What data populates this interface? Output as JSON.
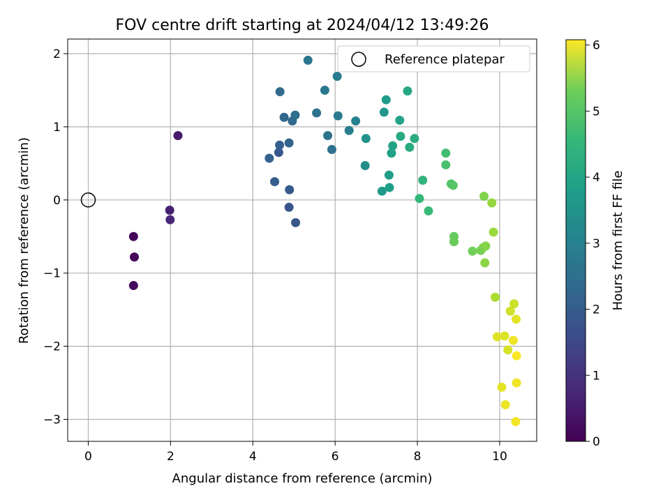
{
  "chart_data": {
    "type": "scatter",
    "title": "FOV centre drift starting at 2024/04/12 13:49:26",
    "xlabel": "Angular distance from reference (arcmin)",
    "ylabel": "Rotation from reference (arcmin)",
    "xlim": [
      -0.5,
      10.9
    ],
    "ylim": [
      -3.3,
      2.2
    ],
    "xticks": [
      0,
      2,
      4,
      6,
      8,
      10
    ],
    "xtick_labels": [
      "0",
      "2",
      "4",
      "6",
      "8",
      "10"
    ],
    "yticks": [
      -3,
      -2,
      -1,
      0,
      1,
      2
    ],
    "ytick_labels": [
      "−3",
      "−2",
      "−1",
      "0",
      "1",
      "2"
    ],
    "grid": true,
    "legend": {
      "position": "top-right",
      "entries": [
        "Reference platepar"
      ]
    },
    "reference_point": {
      "x": 0,
      "y": 0,
      "label": "Reference platepar"
    },
    "colorbar": {
      "label": "Hours from first FF file",
      "colormap": "viridis",
      "range": [
        0,
        6.08
      ],
      "ticks": [
        0,
        1,
        2,
        3,
        4,
        5,
        6
      ],
      "tick_labels": [
        "0",
        "1",
        "2",
        "3",
        "4",
        "5",
        "6"
      ]
    },
    "points": [
      {
        "x": 1.1,
        "y": -0.5,
        "c": 0.05
      },
      {
        "x": 1.12,
        "y": -0.78,
        "c": 0.1
      },
      {
        "x": 1.1,
        "y": -1.17,
        "c": 0.15
      },
      {
        "x": 1.98,
        "y": -0.14,
        "c": 0.55
      },
      {
        "x": 1.99,
        "y": -0.27,
        "c": 0.65
      },
      {
        "x": 2.18,
        "y": 0.88,
        "c": 0.45
      },
      {
        "x": 4.4,
        "y": 0.57,
        "c": 1.9
      },
      {
        "x": 4.53,
        "y": 0.25,
        "c": 1.8
      },
      {
        "x": 4.63,
        "y": 0.65,
        "c": 1.7
      },
      {
        "x": 4.65,
        "y": 0.75,
        "c": 1.85
      },
      {
        "x": 4.66,
        "y": 1.48,
        "c": 2.1
      },
      {
        "x": 4.76,
        "y": 1.13,
        "c": 2.0
      },
      {
        "x": 4.88,
        "y": 0.78,
        "c": 1.95
      },
      {
        "x": 4.89,
        "y": 0.14,
        "c": 1.75
      },
      {
        "x": 4.88,
        "y": -0.1,
        "c": 1.6
      },
      {
        "x": 4.96,
        "y": 1.08,
        "c": 2.05
      },
      {
        "x": 5.03,
        "y": 1.16,
        "c": 2.2
      },
      {
        "x": 5.04,
        "y": -0.31,
        "c": 1.65
      },
      {
        "x": 5.34,
        "y": 1.91,
        "c": 2.4
      },
      {
        "x": 5.55,
        "y": 1.19,
        "c": 2.3
      },
      {
        "x": 5.75,
        "y": 1.5,
        "c": 2.45
      },
      {
        "x": 5.82,
        "y": 0.88,
        "c": 2.35
      },
      {
        "x": 5.92,
        "y": 0.69,
        "c": 2.25
      },
      {
        "x": 6.05,
        "y": 1.69,
        "c": 2.55
      },
      {
        "x": 6.07,
        "y": 1.15,
        "c": 2.5
      },
      {
        "x": 6.34,
        "y": 0.95,
        "c": 2.6
      },
      {
        "x": 6.5,
        "y": 1.08,
        "c": 2.7
      },
      {
        "x": 6.73,
        "y": 0.47,
        "c": 3.0
      },
      {
        "x": 6.75,
        "y": 0.84,
        "c": 3.1
      },
      {
        "x": 7.14,
        "y": 0.12,
        "c": 3.25
      },
      {
        "x": 7.19,
        "y": 1.2,
        "c": 3.2
      },
      {
        "x": 7.24,
        "y": 1.37,
        "c": 3.3
      },
      {
        "x": 7.31,
        "y": 0.34,
        "c": 3.35
      },
      {
        "x": 7.32,
        "y": 0.17,
        "c": 3.4
      },
      {
        "x": 7.37,
        "y": 0.64,
        "c": 3.45
      },
      {
        "x": 7.4,
        "y": 0.74,
        "c": 3.5
      },
      {
        "x": 7.57,
        "y": 1.09,
        "c": 3.55
      },
      {
        "x": 7.59,
        "y": 0.87,
        "c": 3.65
      },
      {
        "x": 7.76,
        "y": 1.49,
        "c": 3.6
      },
      {
        "x": 7.81,
        "y": 0.72,
        "c": 3.7
      },
      {
        "x": 7.93,
        "y": 0.84,
        "c": 3.75
      },
      {
        "x": 8.05,
        "y": 0.02,
        "c": 4.05
      },
      {
        "x": 8.13,
        "y": 0.27,
        "c": 3.95
      },
      {
        "x": 8.27,
        "y": -0.15,
        "c": 4.1
      },
      {
        "x": 8.69,
        "y": 0.64,
        "c": 4.2
      },
      {
        "x": 8.69,
        "y": 0.48,
        "c": 4.3
      },
      {
        "x": 8.82,
        "y": 0.22,
        "c": 4.4
      },
      {
        "x": 8.87,
        "y": 0.2,
        "c": 4.45
      },
      {
        "x": 8.89,
        "y": -0.5,
        "c": 4.6
      },
      {
        "x": 8.89,
        "y": -0.57,
        "c": 4.65
      },
      {
        "x": 9.34,
        "y": -0.7,
        "c": 4.75
      },
      {
        "x": 9.54,
        "y": -0.69,
        "c": 4.8
      },
      {
        "x": 9.62,
        "y": 0.05,
        "c": 4.9
      },
      {
        "x": 9.6,
        "y": -0.65,
        "c": 4.85
      },
      {
        "x": 9.66,
        "y": -0.63,
        "c": 4.95
      },
      {
        "x": 9.64,
        "y": -0.86,
        "c": 5.0
      },
      {
        "x": 9.81,
        "y": -0.04,
        "c": 5.1
      },
      {
        "x": 9.85,
        "y": -0.44,
        "c": 5.15
      },
      {
        "x": 9.89,
        "y": -1.33,
        "c": 5.3
      },
      {
        "x": 9.94,
        "y": -1.87,
        "c": 5.8
      },
      {
        "x": 10.05,
        "y": -2.56,
        "c": 5.85
      },
      {
        "x": 10.12,
        "y": -1.86,
        "c": 5.75
      },
      {
        "x": 10.14,
        "y": -2.8,
        "c": 5.9
      },
      {
        "x": 10.2,
        "y": -2.05,
        "c": 5.7
      },
      {
        "x": 10.26,
        "y": -1.52,
        "c": 5.65
      },
      {
        "x": 10.33,
        "y": -1.92,
        "c": 5.95
      },
      {
        "x": 10.35,
        "y": -1.42,
        "c": 5.6
      },
      {
        "x": 10.39,
        "y": -3.03,
        "c": 6.0
      },
      {
        "x": 10.4,
        "y": -1.63,
        "c": 5.85
      },
      {
        "x": 10.41,
        "y": -2.13,
        "c": 6.05
      },
      {
        "x": 10.41,
        "y": -2.5,
        "c": 5.95
      }
    ]
  }
}
